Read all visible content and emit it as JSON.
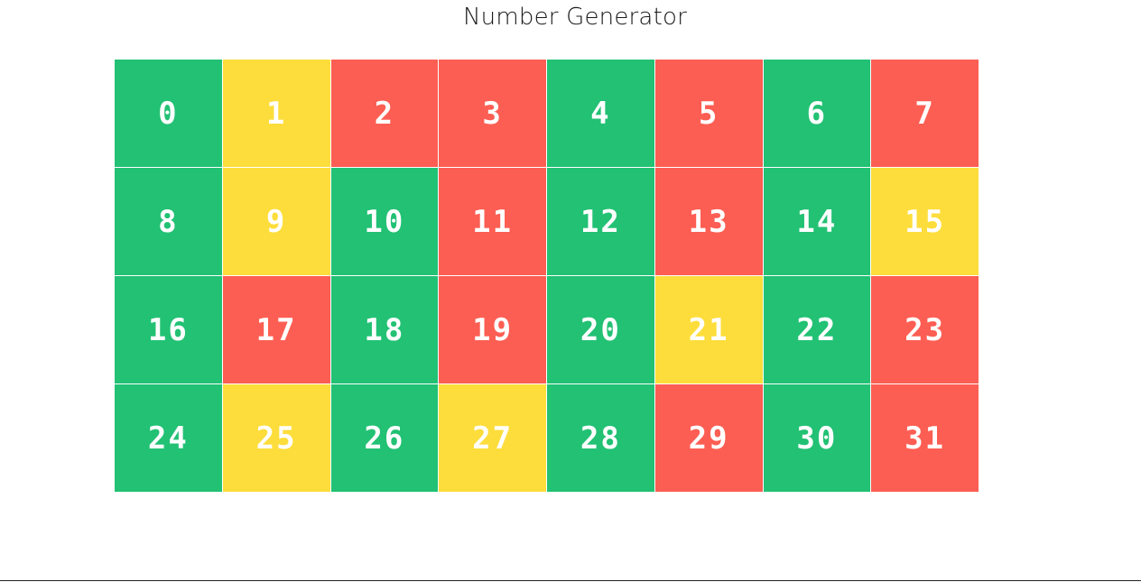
{
  "header": {
    "title": "Number Generator"
  },
  "colors": {
    "even": "#22c174",
    "odd": "#fd5e53",
    "prime": "#fddd3b"
  },
  "grid": {
    "cells": [
      {
        "number": "0",
        "kind": "even"
      },
      {
        "number": "1",
        "kind": "prime"
      },
      {
        "number": "2",
        "kind": "odd"
      },
      {
        "number": "3",
        "kind": "odd"
      },
      {
        "number": "4",
        "kind": "even"
      },
      {
        "number": "5",
        "kind": "odd"
      },
      {
        "number": "6",
        "kind": "even"
      },
      {
        "number": "7",
        "kind": "odd"
      },
      {
        "number": "8",
        "kind": "even"
      },
      {
        "number": "9",
        "kind": "prime"
      },
      {
        "number": "10",
        "kind": "even"
      },
      {
        "number": "11",
        "kind": "odd"
      },
      {
        "number": "12",
        "kind": "even"
      },
      {
        "number": "13",
        "kind": "odd"
      },
      {
        "number": "14",
        "kind": "even"
      },
      {
        "number": "15",
        "kind": "prime"
      },
      {
        "number": "16",
        "kind": "even"
      },
      {
        "number": "17",
        "kind": "odd"
      },
      {
        "number": "18",
        "kind": "even"
      },
      {
        "number": "19",
        "kind": "odd"
      },
      {
        "number": "20",
        "kind": "even"
      },
      {
        "number": "21",
        "kind": "prime"
      },
      {
        "number": "22",
        "kind": "even"
      },
      {
        "number": "23",
        "kind": "odd"
      },
      {
        "number": "24",
        "kind": "even"
      },
      {
        "number": "25",
        "kind": "prime"
      },
      {
        "number": "26",
        "kind": "even"
      },
      {
        "number": "27",
        "kind": "prime"
      },
      {
        "number": "28",
        "kind": "even"
      },
      {
        "number": "29",
        "kind": "odd"
      },
      {
        "number": "30",
        "kind": "even"
      },
      {
        "number": "31",
        "kind": "odd"
      }
    ]
  }
}
